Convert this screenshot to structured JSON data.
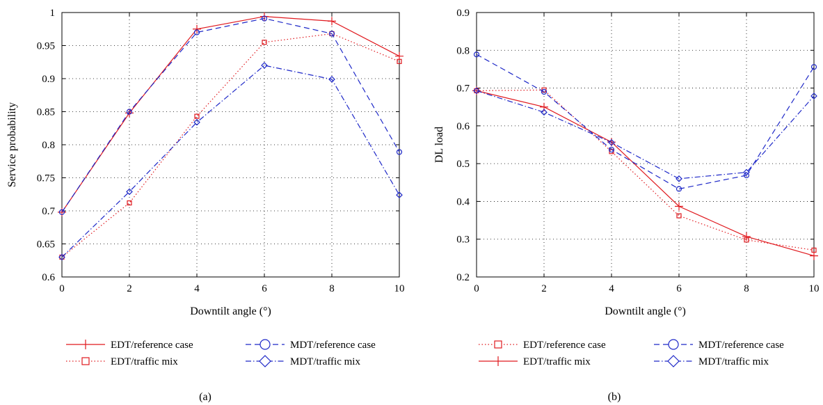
{
  "colors": {
    "red": "#e0191e",
    "blue": "#1e28c8"
  },
  "chart_data": [
    {
      "type": "line",
      "panel_label": "(a)",
      "xlabel": "Downtilt angle (°)",
      "ylabel": "Service probability",
      "xlim": [
        0,
        10
      ],
      "ylim": [
        0.6,
        1.0
      ],
      "xticks": [
        0,
        2,
        4,
        6,
        8,
        10
      ],
      "xtick_labels": [
        "0",
        "2",
        "4",
        "6",
        "8",
        "10"
      ],
      "yticks": [
        0.6,
        0.65,
        0.7,
        0.75,
        0.8,
        0.85,
        0.9,
        0.95,
        1.0
      ],
      "ytick_labels": [
        "0.6",
        "0.65",
        "0.7",
        "0.75",
        "0.8",
        "0.85",
        "0.9",
        "0.95",
        "1"
      ],
      "grid": true,
      "legend_placement": "bottom",
      "x": [
        0,
        2,
        4,
        6,
        8,
        10
      ],
      "series": [
        {
          "name": "EDT/reference case",
          "color": "#e0191e",
          "dash": "solid",
          "marker": "plus",
          "values": [
            0.698,
            0.848,
            0.975,
            0.994,
            0.987,
            0.934
          ]
        },
        {
          "name": "EDT/traffic mix",
          "color": "#e0191e",
          "dash": "dot",
          "marker": "square",
          "values": [
            0.63,
            0.712,
            0.843,
            0.955,
            0.968,
            0.926
          ]
        },
        {
          "name": "MDT/reference case",
          "color": "#1e28c8",
          "dash": "dash",
          "marker": "circle",
          "values": [
            0.698,
            0.85,
            0.97,
            0.991,
            0.968,
            0.789
          ]
        },
        {
          "name": "MDT/traffic mix",
          "color": "#1e28c8",
          "dash": "dashdot",
          "marker": "diamond",
          "values": [
            0.63,
            0.729,
            0.834,
            0.92,
            0.899,
            0.724
          ]
        }
      ],
      "legend_order": [
        0,
        2,
        1,
        3
      ]
    },
    {
      "type": "line",
      "panel_label": "(b)",
      "xlabel": "Downtilt angle (°)",
      "ylabel": "DL load",
      "xlim": [
        0,
        10
      ],
      "ylim": [
        0.2,
        0.9
      ],
      "xticks": [
        0,
        2,
        4,
        6,
        8,
        10
      ],
      "xtick_labels": [
        "0",
        "2",
        "4",
        "6",
        "8",
        "10"
      ],
      "yticks": [
        0.2,
        0.3,
        0.4,
        0.5,
        0.6,
        0.7,
        0.8,
        0.9
      ],
      "ytick_labels": [
        "0.2",
        "0.3",
        "0.4",
        "0.5",
        "0.6",
        "0.7",
        "0.8",
        "0.9"
      ],
      "grid": true,
      "legend_placement": "bottom",
      "x": [
        0,
        2,
        4,
        6,
        8,
        10
      ],
      "series": [
        {
          "name": "EDT/reference case",
          "color": "#e0191e",
          "dash": "dot",
          "marker": "square",
          "values": [
            0.693,
            0.695,
            0.532,
            0.362,
            0.298,
            0.271
          ]
        },
        {
          "name": "EDT/traffic mix",
          "color": "#e0191e",
          "dash": "solid",
          "marker": "plus",
          "values": [
            0.693,
            0.65,
            0.557,
            0.387,
            0.307,
            0.256
          ]
        },
        {
          "name": "MDT/reference case",
          "color": "#1e28c8",
          "dash": "dash",
          "marker": "circle",
          "values": [
            0.789,
            0.69,
            0.537,
            0.433,
            0.469,
            0.756
          ]
        },
        {
          "name": "MDT/traffic mix",
          "color": "#1e28c8",
          "dash": "dashdot",
          "marker": "diamond",
          "values": [
            0.693,
            0.636,
            0.556,
            0.46,
            0.477,
            0.679
          ]
        }
      ],
      "legend_order": [
        0,
        2,
        1,
        3
      ]
    }
  ]
}
